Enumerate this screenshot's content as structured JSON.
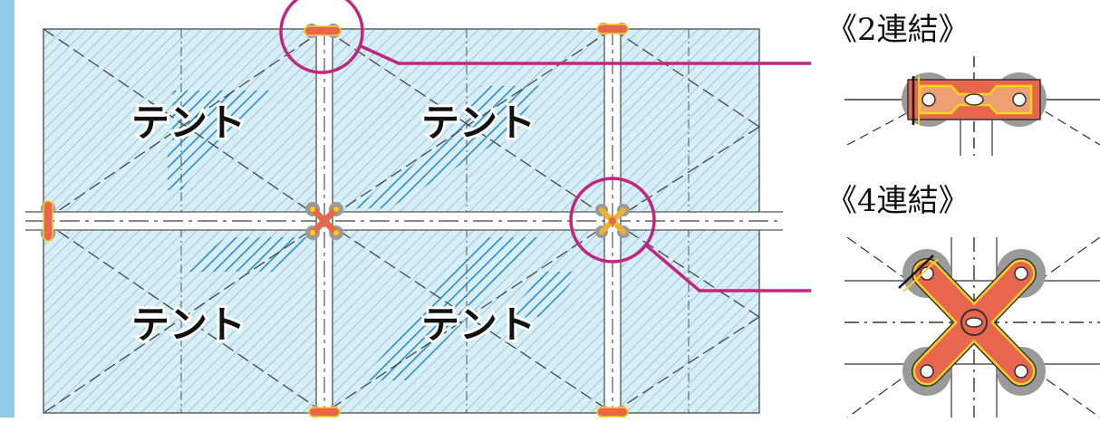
{
  "tent_label": "テント",
  "detail_2": {
    "title": "《2連結》"
  },
  "detail_4": {
    "title": "《4連結》"
  },
  "colors": {
    "left_strip": "#8ecae6",
    "tent_fill": "#d8eef6",
    "hatch_light": "#9cc6dd",
    "hatch_dark": "#2a8fd0",
    "callout": "#c2257f",
    "plate_fill": "#e8654e",
    "plate_edge": "#f4d21f",
    "ring_gray": "#9a9a9a",
    "line_dark": "#333333"
  },
  "icons": [
    "connector-2-icon",
    "connector-4-icon",
    "callout-circle-icon"
  ]
}
